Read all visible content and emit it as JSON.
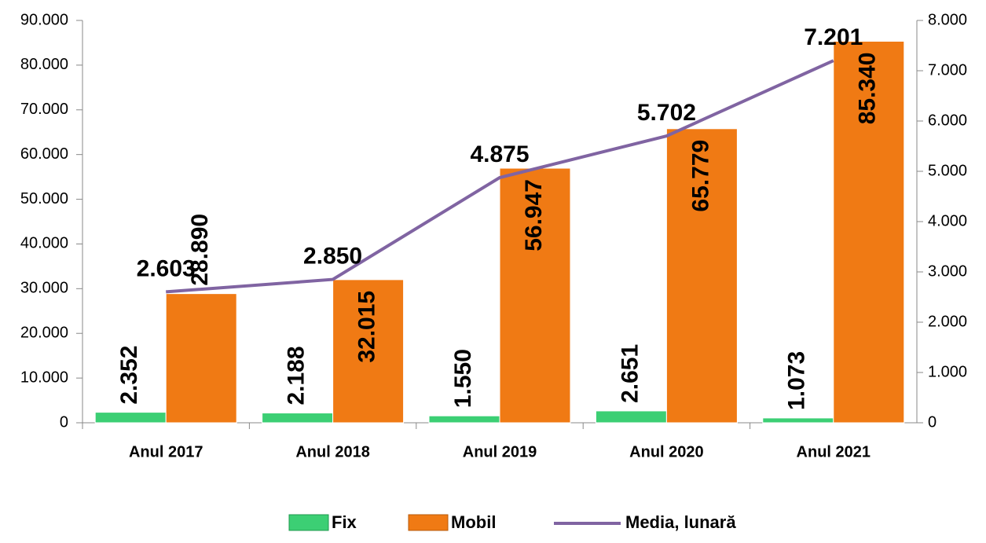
{
  "chart_data": {
    "type": "bar",
    "categories": [
      "Anul 2017",
      "Anul 2018",
      "Anul 2019",
      "Anul 2020",
      "Anul 2021"
    ],
    "series": [
      {
        "name": "Fix",
        "type": "bar",
        "color": "#3ccf74",
        "values": [
          2352,
          2188,
          1550,
          2651,
          1073
        ],
        "value_labels": [
          "2.352",
          "2.188",
          "1.550",
          "2.651",
          "1.073"
        ]
      },
      {
        "name": "Mobil",
        "type": "bar",
        "color": "#f07a14",
        "values": [
          28890,
          32015,
          56947,
          65779,
          85340
        ],
        "value_labels": [
          "28.890",
          "32.015",
          "56.947",
          "65.779",
          "85.340"
        ]
      },
      {
        "name": "Media, lunară",
        "type": "line",
        "axis": "y2",
        "color": "#8064a2",
        "values": [
          2603,
          2850,
          4875,
          5702,
          7201
        ],
        "value_labels": [
          "2.603",
          "2.850",
          "4.875",
          "5.702",
          "7.201"
        ]
      }
    ],
    "ylim": [
      0,
      90000
    ],
    "yticks": [
      0,
      {
        "value": 10000,
        "label": "10.000"
      },
      {
        "value": 20000,
        "label": "20.000"
      },
      {
        "value": 30000,
        "label": "30.000"
      },
      {
        "value": 40000,
        "label": "40.000"
      },
      {
        "value": 50000,
        "label": "50.000"
      },
      {
        "value": 60000,
        "label": "60.000"
      },
      {
        "value": 70000,
        "label": "70.000"
      },
      {
        "value": 80000,
        "label": "80.000"
      },
      {
        "value": 90000,
        "label": "90.000"
      }
    ],
    "y2lim": [
      0,
      8000
    ],
    "y2ticks": [
      0,
      {
        "value": 1000,
        "label": "1.000"
      },
      {
        "value": 2000,
        "label": "2.000"
      },
      {
        "value": 3000,
        "label": "3.000"
      },
      {
        "value": 4000,
        "label": "4.000"
      },
      {
        "value": 5000,
        "label": "5.000"
      },
      {
        "value": 6000,
        "label": "6.000"
      },
      {
        "value": 7000,
        "label": "7.000"
      },
      {
        "value": 8000,
        "label": "8.000"
      }
    ],
    "legend": "bottom"
  }
}
